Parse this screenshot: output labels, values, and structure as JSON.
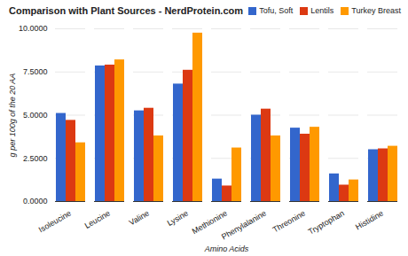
{
  "chart_data": {
    "type": "bar",
    "title": "Comparison with Plant Sources - NerdProtein.com",
    "x_label": "Amino Acids",
    "y_label": "g per 100g of the 20 AA",
    "categories": [
      "Isoleucine",
      "Leucine",
      "Valine",
      "Lysine",
      "Methionine",
      "Phenylalanine",
      "Threonine",
      "Tryptophan",
      "Histidine"
    ],
    "series": [
      {
        "name": "Tofu, Soft",
        "color": "#3366cc",
        "values": [
          5.1,
          7.85,
          5.25,
          6.8,
          1.3,
          5.0,
          4.25,
          1.6,
          3.0
        ]
      },
      {
        "name": "Lentils",
        "color": "#dc3912",
        "values": [
          4.7,
          7.9,
          5.4,
          7.6,
          0.9,
          5.35,
          3.9,
          0.95,
          3.05
        ]
      },
      {
        "name": "Turkey Breast",
        "color": "#ff9900",
        "values": [
          3.4,
          8.2,
          3.8,
          9.75,
          3.1,
          3.8,
          4.3,
          1.25,
          3.2
        ]
      }
    ],
    "ylim": [
      0,
      10
    ],
    "yticks": [
      {
        "value": 0,
        "label": "0.0000"
      },
      {
        "value": 2.5,
        "label": "2.5000"
      },
      {
        "value": 5,
        "label": "5.0000"
      },
      {
        "value": 7.5,
        "label": "7.5000"
      },
      {
        "value": 10,
        "label": "10.0000"
      }
    ],
    "grid": true,
    "legend": "top-right"
  }
}
